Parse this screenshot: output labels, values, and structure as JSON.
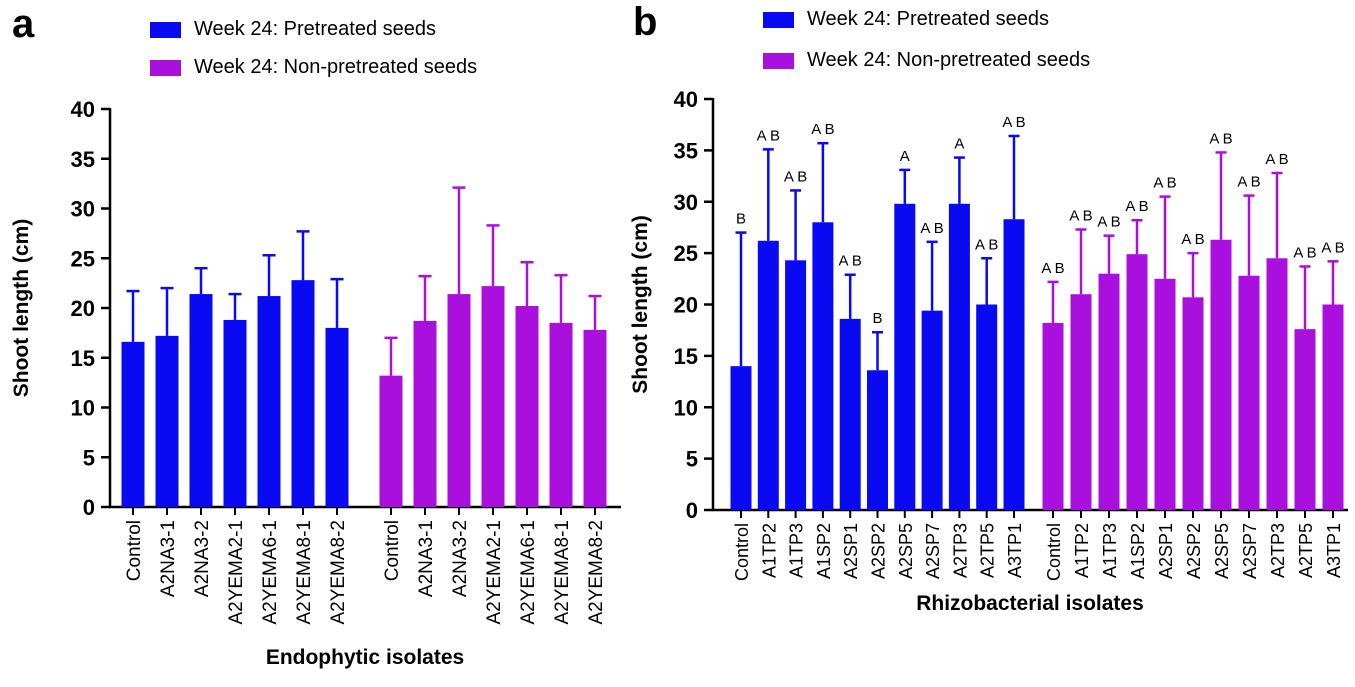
{
  "figure_title": "",
  "chart_data": [
    {
      "type": "bar",
      "panel_letter": "a",
      "title": "",
      "xlabel": "Endophytic isolates",
      "ylabel": "Shoot length (cm)",
      "ylim": [
        0,
        40
      ],
      "yticks": [
        0,
        5,
        10,
        15,
        20,
        25,
        30,
        35,
        40
      ],
      "grid": false,
      "legend_position": "top",
      "error_bars": "upper SD",
      "categories": [
        "Control",
        "A2NA3-1",
        "A2NA3-2",
        "A2YEMA2-1",
        "A2YEMA6-1",
        "A2YEMA8-1",
        "A2YEMA8-2"
      ],
      "series": [
        {
          "name": "Week 24: Pretreated seeds",
          "color": "#0909f2",
          "values": [
            16.6,
            17.2,
            21.4,
            18.8,
            21.2,
            22.8,
            18.0
          ],
          "error_top": [
            21.7,
            22.0,
            24.0,
            21.4,
            25.3,
            27.7,
            22.9
          ]
        },
        {
          "name": "Week 24: Non-pretreated seeds",
          "color": "#aa10dd",
          "values": [
            13.2,
            18.7,
            21.4,
            22.2,
            20.2,
            18.5,
            17.8
          ],
          "error_top": [
            17.0,
            23.2,
            32.1,
            28.3,
            24.6,
            23.3,
            21.2
          ]
        }
      ]
    },
    {
      "type": "bar",
      "panel_letter": "b",
      "title": "",
      "xlabel": "Rhizobacterial isolates",
      "ylabel": "Shoot length (cm)",
      "ylim": [
        0,
        40
      ],
      "yticks": [
        0,
        5,
        10,
        15,
        20,
        25,
        30,
        35,
        40
      ],
      "grid": false,
      "legend_position": "top",
      "error_bars": "upper SD",
      "categories": [
        "Control",
        "A1TP2",
        "A1TP3",
        "A1SP2",
        "A2SP1",
        "A2SP2",
        "A2SP5",
        "A2SP7",
        "A2TP3",
        "A2TP5",
        "A3TP1"
      ],
      "series": [
        {
          "name": "Week 24: Pretreated seeds",
          "color": "#0909f2",
          "values": [
            14.0,
            26.2,
            24.3,
            28.0,
            18.6,
            13.6,
            29.8,
            19.4,
            29.8,
            20.0,
            28.3
          ],
          "error_top": [
            27.0,
            35.1,
            31.1,
            35.7,
            22.9,
            17.3,
            33.1,
            26.1,
            34.3,
            24.5,
            36.4
          ],
          "letters": [
            "B",
            "A B",
            "A B",
            "A B",
            "A B",
            "B",
            "A",
            "A B",
            "A",
            "A B",
            "A B"
          ]
        },
        {
          "name": "Week 24: Non-pretreated seeds",
          "color": "#aa10dd",
          "values": [
            18.2,
            21.0,
            23.0,
            24.9,
            22.5,
            20.7,
            26.3,
            22.8,
            24.5,
            17.6,
            20.0
          ],
          "error_top": [
            22.2,
            27.3,
            26.7,
            28.2,
            30.5,
            25.0,
            34.8,
            30.6,
            32.8,
            23.7,
            24.2
          ],
          "letters": [
            "A B",
            "A B",
            "A B",
            "A B",
            "A B",
            "A B",
            "A B",
            "A B",
            "A B",
            "A B",
            "A B"
          ]
        }
      ]
    }
  ]
}
